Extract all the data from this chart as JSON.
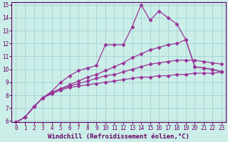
{
  "title": "",
  "xlabel": "Windchill (Refroidissement éolien,°C)",
  "ylabel": "",
  "xlim": [
    -0.5,
    23.5
  ],
  "ylim": [
    5.9,
    15.2
  ],
  "xticks": [
    0,
    1,
    2,
    3,
    4,
    5,
    6,
    7,
    8,
    9,
    10,
    11,
    12,
    13,
    14,
    15,
    16,
    17,
    18,
    19,
    20,
    21,
    22,
    23
  ],
  "yticks": [
    6,
    7,
    8,
    9,
    10,
    11,
    12,
    13,
    14,
    15
  ],
  "background_color": "#cceee8",
  "grid_color": "#99cccc",
  "line_color": "#993399",
  "lines": [
    {
      "x": [
        0,
        1,
        2,
        3,
        4,
        5,
        6,
        7,
        8,
        9,
        10,
        11,
        12,
        13,
        14,
        15,
        16,
        17,
        18,
        19,
        20,
        21,
        22,
        23
      ],
      "y": [
        5.9,
        6.3,
        7.1,
        7.8,
        8.1,
        8.4,
        8.6,
        8.7,
        8.8,
        8.9,
        9.0,
        9.1,
        9.2,
        9.3,
        9.4,
        9.4,
        9.5,
        9.5,
        9.6,
        9.6,
        9.7,
        9.7,
        9.7,
        9.8
      ]
    },
    {
      "x": [
        0,
        1,
        2,
        3,
        4,
        5,
        6,
        7,
        8,
        9,
        10,
        11,
        12,
        13,
        14,
        15,
        16,
        17,
        18,
        19,
        20,
        21,
        22,
        23
      ],
      "y": [
        5.9,
        6.3,
        7.1,
        7.8,
        8.2,
        8.5,
        8.7,
        8.9,
        9.1,
        9.3,
        9.5,
        9.6,
        9.8,
        10.0,
        10.2,
        10.4,
        10.5,
        10.6,
        10.7,
        10.7,
        10.7,
        10.6,
        10.5,
        10.4
      ]
    },
    {
      "x": [
        0,
        1,
        2,
        3,
        4,
        5,
        6,
        7,
        8,
        9,
        10,
        11,
        12,
        13,
        14,
        15,
        16,
        17,
        18,
        19,
        20,
        21,
        22,
        23
      ],
      "y": [
        5.9,
        6.3,
        7.1,
        7.8,
        8.2,
        8.5,
        8.8,
        9.1,
        9.4,
        9.6,
        9.9,
        10.2,
        10.5,
        10.9,
        11.2,
        11.5,
        11.7,
        11.9,
        12.0,
        12.3,
        10.2,
        10.1,
        10.0,
        9.8
      ]
    },
    {
      "comment": "top spiky curve - peak at x=14 ~15, x=15 ~13.8, x=16 ~14.5, x=17 ~14.0, x=18 ~13.5",
      "x": [
        0,
        1,
        2,
        3,
        4,
        5,
        6,
        7,
        8,
        9,
        10,
        11,
        12,
        13,
        14,
        15,
        16,
        17,
        18,
        19,
        20,
        21,
        22,
        23
      ],
      "y": [
        5.9,
        6.3,
        7.1,
        7.8,
        8.3,
        9.0,
        9.5,
        9.9,
        10.1,
        10.3,
        11.9,
        11.9,
        11.9,
        13.3,
        15.0,
        13.8,
        14.5,
        14.0,
        13.5,
        12.3,
        10.2,
        10.1,
        10.0,
        9.8
      ]
    }
  ],
  "marker": "D",
  "markersize": 2.5,
  "linewidth": 0.9,
  "font_color": "#660066",
  "tick_fontsize": 5.5,
  "xlabel_fontsize": 6.5
}
